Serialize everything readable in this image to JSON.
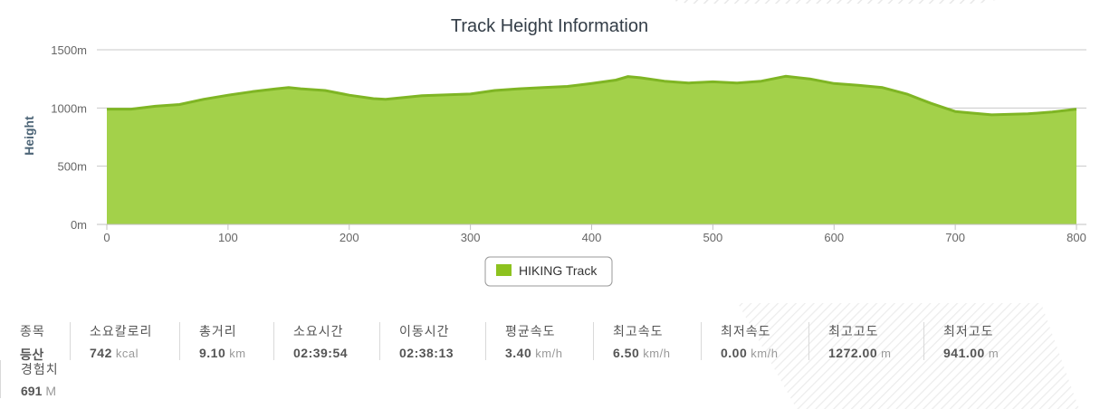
{
  "chart_data": {
    "type": "area",
    "title": "Track Height Information",
    "ylabel": "Height",
    "xlabel": "",
    "xlim": [
      0,
      800
    ],
    "ylim": [
      0,
      1500
    ],
    "x_ticks": [
      "0",
      "100",
      "200",
      "300",
      "400",
      "500",
      "600",
      "700",
      "800"
    ],
    "y_ticks": [
      "0m",
      "500m",
      "1000m",
      "1500m"
    ],
    "grid": true,
    "legend": "bottom-center",
    "series": [
      {
        "name": "HIKING Track",
        "color": "#8dc21f",
        "x": [
          0,
          20,
          40,
          60,
          80,
          100,
          120,
          140,
          150,
          160,
          180,
          200,
          220,
          230,
          260,
          300,
          320,
          340,
          360,
          380,
          400,
          420,
          430,
          440,
          460,
          480,
          500,
          520,
          540,
          560,
          580,
          600,
          620,
          640,
          660,
          680,
          700,
          710,
          730,
          760,
          780,
          800
        ],
        "y": [
          990,
          990,
          1015,
          1030,
          1075,
          1110,
          1140,
          1165,
          1175,
          1165,
          1150,
          1110,
          1080,
          1075,
          1105,
          1120,
          1150,
          1165,
          1175,
          1185,
          1210,
          1240,
          1270,
          1260,
          1230,
          1215,
          1225,
          1215,
          1230,
          1272,
          1250,
          1210,
          1195,
          1175,
          1120,
          1040,
          970,
          960,
          941,
          950,
          965,
          990
        ]
      }
    ]
  },
  "stats": [
    {
      "label": "종목",
      "value": "등산",
      "unit": ""
    },
    {
      "label": "소요칼로리",
      "value": "742",
      "unit": "kcal"
    },
    {
      "label": "총거리",
      "value": "9.10",
      "unit": "km"
    },
    {
      "label": "소요시간",
      "value": "02:39:54",
      "unit": ""
    },
    {
      "label": "이동시간",
      "value": "02:38:13",
      "unit": ""
    },
    {
      "label": "평균속도",
      "value": "3.40",
      "unit": "km/h"
    },
    {
      "label": "최고속도",
      "value": "6.50",
      "unit": "km/h"
    },
    {
      "label": "최저속도",
      "value": "0.00",
      "unit": "km/h"
    },
    {
      "label": "최고고도",
      "value": "1272.00",
      "unit": "m"
    },
    {
      "label": "최저고도",
      "value": "941.00",
      "unit": "m"
    }
  ],
  "experience": {
    "label": "경험치",
    "value": "691",
    "unit": "M"
  }
}
